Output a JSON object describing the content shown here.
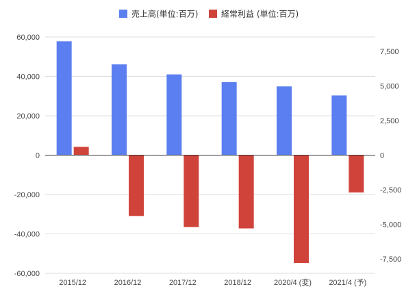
{
  "chart_data": {
    "type": "bar",
    "categories": [
      "2015/12",
      "2016/12",
      "2017/12",
      "2018/12",
      "2020/4 (変)",
      "2021/4 (予)"
    ],
    "series": [
      {
        "name": "売上高(単位:百万)",
        "axis": "left",
        "color": "#5b7ff0",
        "values": [
          57800,
          46100,
          41000,
          37100,
          34900,
          30300
        ]
      },
      {
        "name": "経常利益 (単位:百万)",
        "axis": "right",
        "color": "#d0433b",
        "values": [
          600,
          -4400,
          -5200,
          -5300,
          -7800,
          -2700
        ]
      }
    ],
    "left_axis": {
      "ylim": [
        -60000,
        60000
      ],
      "ticks": [
        60000,
        40000,
        20000,
        0,
        -20000,
        -40000,
        -60000
      ],
      "tick_labels": [
        "60,000",
        "40,000",
        "20,000",
        "0",
        "-20,000",
        "-40,000",
        "-60,000"
      ]
    },
    "right_axis": {
      "ylim": [
        -8545,
        8545
      ],
      "ticks": [
        7500,
        5000,
        2500,
        0,
        -2500,
        -5000,
        -7500
      ],
      "tick_labels": [
        "7,500",
        "5,000",
        "2,500",
        "0",
        "-2,500",
        "-5,000",
        "-7,500"
      ]
    },
    "grid": true,
    "legend": "top-center"
  }
}
